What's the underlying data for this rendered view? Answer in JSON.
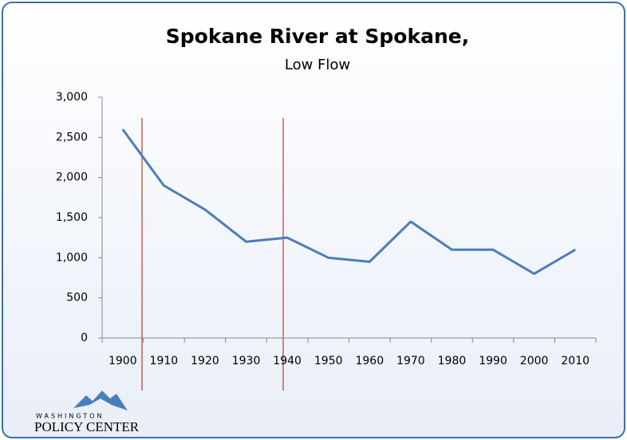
{
  "chart_data": {
    "type": "line",
    "title": "Spokane River at Spokane,",
    "subtitle": "Low Flow",
    "categories": [
      "1900",
      "1910",
      "1920",
      "1930",
      "1940",
      "1950",
      "1960",
      "1970",
      "1980",
      "1990",
      "2000",
      "2010"
    ],
    "series": [
      {
        "name": "Low Flow",
        "color": "#4a7ebb",
        "values": [
          2600,
          1900,
          1600,
          1200,
          1250,
          1000,
          950,
          1450,
          1100,
          1100,
          800,
          1100
        ]
      }
    ],
    "ylim": [
      0,
      3000
    ],
    "yticks": [
      0,
      500,
      {
        "value": 1000,
        "label": "1,000"
      },
      {
        "value": 1500,
        "label": "1,500"
      },
      {
        "value": 2000,
        "label": "2,000"
      },
      {
        "value": 2500,
        "label": "2,500"
      },
      {
        "value": 3000,
        "label": "3,000"
      }
    ],
    "grid": false
  },
  "logo": {
    "top": "WASHINGTON",
    "bottom": "POLICY CENTER"
  }
}
